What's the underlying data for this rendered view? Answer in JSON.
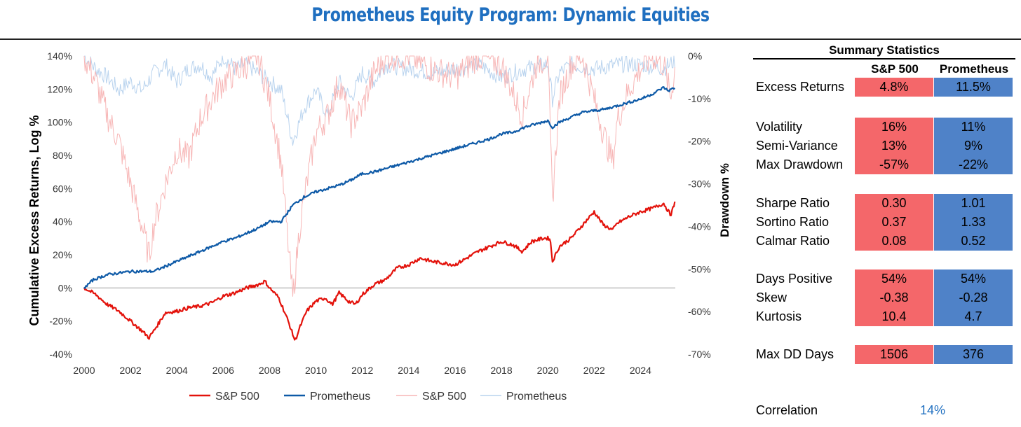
{
  "title": "Prometheus Equity Program: Dynamic Equities",
  "chart_data": {
    "type": "line",
    "title": "",
    "xlabel": "",
    "ylabel": "Cumulative Excess Returns, Log %",
    "y2label": "Drawdown %",
    "xlim": [
      2000,
      2025.5
    ],
    "ylim": [
      -40,
      140
    ],
    "y2lim": [
      -70,
      0
    ],
    "x_ticks": [
      "2000",
      "2002",
      "2004",
      "2006",
      "2008",
      "2010",
      "2012",
      "2014",
      "2016",
      "2018",
      "2020",
      "2022",
      "2024"
    ],
    "y_ticks": [
      "140%",
      "120%",
      "100%",
      "80%",
      "60%",
      "40%",
      "20%",
      "0%",
      "-20%",
      "-40%"
    ],
    "y2_ticks": [
      "0%",
      "-10%",
      "-20%",
      "-30%",
      "-40%",
      "-50%",
      "-60%",
      "-70%"
    ],
    "legend": [
      "S&P 500",
      "Prometheus",
      "S&P 500",
      "Prometheus"
    ],
    "legend_position": "bottom",
    "colors": {
      "sp": "#e3120b",
      "prom": "#0e5aa7",
      "sp_dd": "#f7b6b6",
      "prom_dd": "#b9d3ee"
    },
    "series": [
      {
        "name": "S&P 500",
        "axis": "left",
        "x": [
          2000,
          2000.5,
          2001,
          2001.5,
          2002,
          2002.5,
          2002.8,
          2003,
          2003.5,
          2004,
          2004.5,
          2005,
          2005.5,
          2006,
          2006.5,
          2007,
          2007.5,
          2007.8,
          2008,
          2008.4,
          2008.8,
          2009.1,
          2009.3,
          2009.6,
          2010,
          2010.4,
          2010.7,
          2011,
          2011.4,
          2011.7,
          2012,
          2012.5,
          2013,
          2013.5,
          2014,
          2014.5,
          2015,
          2015.5,
          2016,
          2016.5,
          2017,
          2017.5,
          2018,
          2018.5,
          2018.9,
          2019.3,
          2019.8,
          2020.1,
          2020.2,
          2020.5,
          2021,
          2021.5,
          2022,
          2022.4,
          2022.8,
          2023,
          2023.5,
          2024,
          2024.5,
          2025,
          2025.3,
          2025.5
        ],
        "values": [
          0,
          -4,
          -10,
          -14,
          -20,
          -26,
          -30,
          -26,
          -15,
          -14,
          -12,
          -11,
          -9,
          -5,
          -3,
          0,
          2,
          4,
          0,
          -6,
          -20,
          -32,
          -24,
          -14,
          -8,
          -6,
          -10,
          -3,
          -8,
          -10,
          -4,
          2,
          5,
          12,
          14,
          18,
          16,
          15,
          14,
          18,
          22,
          25,
          28,
          26,
          22,
          28,
          30,
          30,
          16,
          25,
          30,
          38,
          46,
          38,
          35,
          39,
          43,
          46,
          48,
          51,
          44,
          52
        ]
      },
      {
        "name": "Prometheus",
        "axis": "left",
        "x": [
          2000,
          2000.4,
          2001,
          2001.5,
          2002,
          2002.5,
          2003,
          2003.5,
          2004,
          2004.5,
          2005,
          2005.5,
          2006,
          2006.5,
          2007,
          2007.5,
          2008,
          2008.5,
          2009,
          2009.5,
          2010,
          2010.5,
          2011,
          2011.5,
          2012,
          2012.5,
          2013,
          2013.5,
          2014,
          2014.5,
          2015,
          2015.5,
          2016,
          2016.5,
          2017,
          2017.5,
          2018,
          2018.5,
          2019,
          2019.5,
          2020,
          2020.2,
          2020.5,
          2021,
          2021.5,
          2022,
          2022.5,
          2023,
          2023.5,
          2024,
          2024.5,
          2025,
          2025.2,
          2025.5
        ],
        "values": [
          0,
          5,
          8,
          9,
          10,
          10,
          10,
          13,
          16,
          19,
          22,
          25,
          28,
          30,
          33,
          36,
          40,
          40,
          50,
          55,
          58,
          60,
          62,
          65,
          69,
          70,
          72,
          74,
          76,
          78,
          80,
          82,
          84,
          86,
          88,
          90,
          93,
          94,
          97,
          99,
          101,
          97,
          100,
          103,
          106,
          107,
          108,
          110,
          112,
          114,
          117,
          121,
          119,
          121
        ]
      },
      {
        "name": "S&P 500",
        "axis": "right",
        "x": [
          2000,
          2000.5,
          2001,
          2001.5,
          2002,
          2002.5,
          2002.8,
          2003,
          2003.5,
          2004,
          2004.5,
          2005,
          2005.5,
          2006,
          2006.5,
          2007,
          2007.5,
          2008,
          2008.5,
          2009,
          2009.3,
          2009.6,
          2010,
          2010.5,
          2011,
          2011.5,
          2012,
          2012.5,
          2013,
          2014,
          2015,
          2016,
          2017,
          2018,
          2018.9,
          2019.5,
          2020,
          2020.2,
          2020.5,
          2021,
          2021.5,
          2022,
          2022.4,
          2022.8,
          2023,
          2023.5,
          2024,
          2024.5,
          2025,
          2025.3,
          2025.5
        ],
        "values": [
          0,
          -6,
          -14,
          -20,
          -30,
          -40,
          -47,
          -40,
          -30,
          -22,
          -24,
          -15,
          -10,
          -6,
          -4,
          -2,
          0,
          -10,
          -25,
          -57,
          -40,
          -30,
          -18,
          -14,
          -6,
          -16,
          -12,
          -4,
          0,
          0,
          -3,
          -5,
          0,
          -2,
          -14,
          -2,
          0,
          -34,
          -10,
          -2,
          0,
          -10,
          -18,
          -25,
          -15,
          -8,
          -3,
          0,
          -2,
          -10,
          -2
        ]
      },
      {
        "name": "Prometheus",
        "axis": "right",
        "x": [
          2000,
          2000.5,
          2001,
          2001.5,
          2002,
          2002.5,
          2003,
          2003.5,
          2004,
          2004.5,
          2005,
          2005.5,
          2006,
          2006.5,
          2007,
          2007.5,
          2008,
          2008.5,
          2009,
          2009.5,
          2010,
          2010.5,
          2011,
          2011.5,
          2012,
          2012.5,
          2013,
          2014,
          2015,
          2016,
          2017,
          2018,
          2019,
          2020,
          2020.2,
          2020.5,
          2021,
          2022,
          2023,
          2024,
          2025,
          2025.5
        ],
        "values": [
          0,
          -3,
          -5,
          -8,
          -6,
          -8,
          -4,
          -2,
          -6,
          -3,
          -2,
          -5,
          0,
          -3,
          -2,
          -4,
          -6,
          -8,
          -20,
          -12,
          -8,
          -14,
          -6,
          -10,
          -4,
          -6,
          -2,
          -3,
          -4,
          -3,
          -2,
          -5,
          -3,
          -2,
          -10,
          -4,
          -2,
          -3,
          -2,
          -2,
          -3,
          -1
        ]
      }
    ]
  },
  "stats": {
    "title": "Summary Statistics",
    "headers": [
      "S&P 500",
      "Prometheus"
    ],
    "rows": [
      {
        "label": "Excess Returns",
        "sp": "4.8%",
        "prom": "11.5%"
      },
      {
        "label": "Volatility",
        "sp": "16%",
        "prom": "11%"
      },
      {
        "label": "Semi-Variance",
        "sp": "13%",
        "prom": "9%"
      },
      {
        "label": "Max Drawdown",
        "sp": "-57%",
        "prom": "-22%"
      },
      {
        "label": "Sharpe Ratio",
        "sp": "0.30",
        "prom": "1.01"
      },
      {
        "label": "Sortino Ratio",
        "sp": "0.37",
        "prom": "1.33"
      },
      {
        "label": "Calmar Ratio",
        "sp": "0.08",
        "prom": "0.52"
      },
      {
        "label": "Days Positive",
        "sp": "54%",
        "prom": "54%"
      },
      {
        "label": "Skew",
        "sp": "-0.38",
        "prom": "-0.28"
      },
      {
        "label": "Kurtosis",
        "sp": "10.4",
        "prom": "4.7"
      },
      {
        "label": "Max DD Days",
        "sp": "1506",
        "prom": "376"
      }
    ],
    "correlation_label": "Correlation",
    "correlation_value": "14%"
  }
}
